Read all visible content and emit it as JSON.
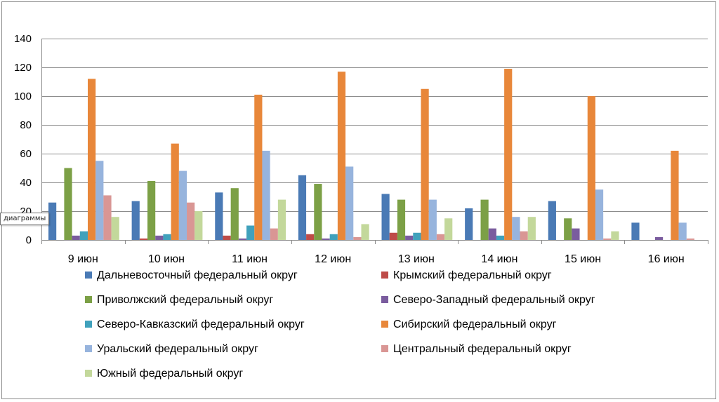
{
  "tooltip": {
    "text": "диаграммы"
  },
  "chart_data": {
    "type": "bar",
    "title": "",
    "xlabel": "",
    "ylabel": "",
    "ylim": [
      0,
      140
    ],
    "yticks": [
      0,
      20,
      40,
      60,
      80,
      100,
      120,
      140
    ],
    "grid": true,
    "legend_position": "bottom",
    "categories": [
      "9 июн",
      "10 июн",
      "11 июн",
      "12 июн",
      "13 июн",
      "14 июн",
      "15 июн",
      "16 июн"
    ],
    "series": [
      {
        "name": "Дальневосточный федеральный округ",
        "color": "#4a7ab5",
        "values": [
          26,
          27,
          33,
          45,
          32,
          22,
          27,
          12
        ]
      },
      {
        "name": "Крымский федеральный округ",
        "color": "#be4b48",
        "values": [
          0,
          1,
          3,
          4,
          5,
          0,
          0,
          0
        ]
      },
      {
        "name": "Приволжский федеральный округ",
        "color": "#7ca046",
        "values": [
          50,
          41,
          36,
          39,
          28,
          28,
          15,
          0
        ]
      },
      {
        "name": "Северо-Западный федеральный округ",
        "color": "#7a5c9e",
        "values": [
          3,
          3,
          1,
          1,
          3,
          8,
          8,
          2
        ]
      },
      {
        "name": "Северо-Кавказский федеральный округ",
        "color": "#40a1bc",
        "values": [
          6,
          4,
          10,
          4,
          5,
          3,
          0,
          0
        ]
      },
      {
        "name": "Сибирский федеральный округ",
        "color": "#e8873a",
        "values": [
          112,
          67,
          101,
          117,
          105,
          119,
          100,
          62
        ]
      },
      {
        "name": "Уральский федеральный округ",
        "color": "#97b4dd",
        "values": [
          55,
          48,
          62,
          51,
          28,
          16,
          35,
          12
        ]
      },
      {
        "name": "Центральный федеральный округ",
        "color": "#d99694",
        "values": [
          31,
          26,
          8,
          2,
          4,
          6,
          1,
          1
        ]
      },
      {
        "name": "Южный федеральный округ",
        "color": "#c3d89b",
        "values": [
          16,
          20,
          28,
          11,
          15,
          16,
          6,
          0
        ]
      }
    ]
  }
}
